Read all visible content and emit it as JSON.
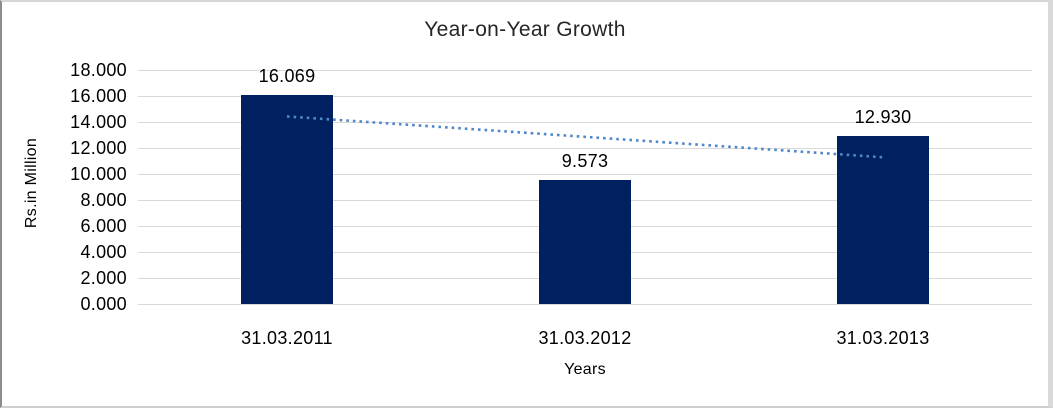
{
  "chart_data": {
    "type": "bar",
    "title": "Year-on-Year Growth",
    "xlabel": "Years",
    "ylabel": "Rs.in Million",
    "categories": [
      "31.03.2011",
      "31.03.2012",
      "31.03.2013"
    ],
    "values": [
      16.069,
      9.573,
      12.93
    ],
    "data_labels": [
      "16.069",
      "9.573",
      "12.930"
    ],
    "ytick_labels": [
      "0.000",
      "2.000",
      "4.000",
      "6.000",
      "8.000",
      "10.000",
      "12.000",
      "14.000",
      "16.000",
      "18.000"
    ],
    "ytick_values": [
      0,
      2,
      4,
      6,
      8,
      10,
      12,
      14,
      16,
      18
    ],
    "ylim": [
      0,
      18
    ],
    "grid": true,
    "legend": "none",
    "bar_color": "#002060",
    "gridline_color": "#d9d9d9",
    "text_color": "#000000",
    "trendline": {
      "type": "linear",
      "style": "dotted",
      "color": "#4f87c7"
    }
  }
}
